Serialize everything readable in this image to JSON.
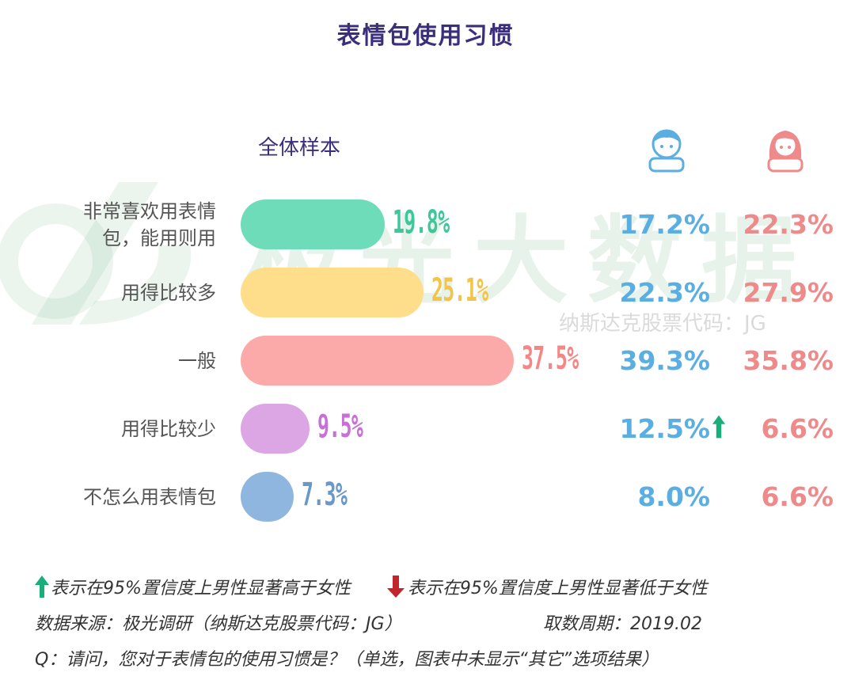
{
  "title": "表情包使用习惯",
  "watermark": {
    "main": "极光大数据",
    "sub": "纳斯达克股票代码：JG"
  },
  "colors": {
    "title": "#3b2f7d",
    "male": "#5aaee2",
    "female": "#ef8a8a",
    "up_arrow": "#1aaf7a",
    "down_arrow": "#c0262c"
  },
  "chart_data": {
    "type": "bar",
    "title": "表情包使用习惯",
    "group_label": "全体样本",
    "categories": [
      "非常喜欢用表情包，能用则用",
      "用得比较多",
      "一般",
      "用得比较少",
      "不怎么用表情包"
    ],
    "category_display": [
      [
        "非常喜欢用表情",
        "包，能用则用"
      ],
      [
        "用得比较多"
      ],
      [
        "一般"
      ],
      [
        "用得比较少"
      ],
      [
        "不怎么用表情包"
      ]
    ],
    "values": [
      19.8,
      25.1,
      37.5,
      9.5,
      7.3
    ],
    "value_labels": [
      "19.8%",
      "25.1%",
      "37.5%",
      "9.5%",
      "7.3%"
    ],
    "bar_colors": [
      "#6fdcb9",
      "#fedd8b",
      "#fcaaa9",
      "#dca6e5",
      "#8fb6de"
    ],
    "value_label_colors": [
      "#3fc79c",
      "#f3c447",
      "#f48686",
      "#c96fd7",
      "#6a98c9"
    ],
    "male_values": [
      "17.2%",
      "22.3%",
      "39.3%",
      "12.5%",
      "8.0%"
    ],
    "female_values": [
      "22.3%",
      "27.9%",
      "35.8%",
      "6.6%",
      "6.6%"
    ],
    "male_significantly_higher": [
      false,
      false,
      false,
      true,
      false
    ]
  },
  "legend": {
    "up_text": "表示在95%置信度上男性显著高于女性",
    "down_text": "表示在95%置信度上男性显著低于女性"
  },
  "source": "数据来源：极光调研（纳斯达克股票代码：JG）",
  "period": "取数周期：2019.02",
  "question": "Q：请问，您对于表情包的使用习惯是？（单选，图表中未显示“其它”选项结果）"
}
